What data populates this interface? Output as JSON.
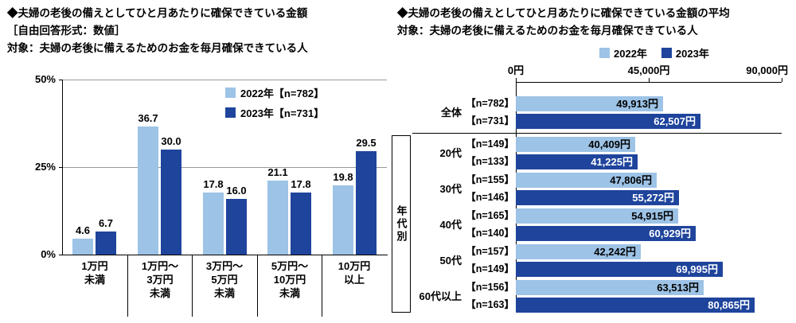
{
  "colors": {
    "y2022": "#9DC3E6",
    "y2023": "#1E449C",
    "grid": "#999999",
    "axis": "#000000"
  },
  "chart_data": [
    {
      "type": "bar",
      "title": "◆夫婦の老後の備えとしてひと月あたりに確保できている金額",
      "subtitle": "［自由回答形式：数値］",
      "target": "対象：夫婦の老後に備えるためのお金を毎月確保できている人",
      "ylim": [
        0,
        50
      ],
      "grid": true,
      "legend_position": "inside-top-right",
      "yticks": [
        {
          "label": "50%",
          "value": 50
        },
        {
          "label": "25%",
          "value": 25
        },
        {
          "label": "0%",
          "value": 0
        }
      ],
      "categories": [
        [
          "1万円",
          "未満"
        ],
        [
          "1万円～",
          "3万円",
          "未満"
        ],
        [
          "3万円～",
          "5万円",
          "未満"
        ],
        [
          "5万円～",
          "10万円",
          "未満"
        ],
        [
          "10万円",
          "以上"
        ]
      ],
      "series": [
        {
          "name": "2022年【n=782】",
          "key": "y2022",
          "values": [
            4.6,
            36.7,
            17.8,
            21.1,
            19.8
          ],
          "labels": [
            "4.6",
            "36.7",
            "17.8",
            "21.1",
            "19.8"
          ]
        },
        {
          "name": "2023年【n=731】",
          "key": "y2023",
          "values": [
            6.7,
            30.0,
            16.0,
            17.8,
            29.5
          ],
          "labels": [
            "6.7",
            "30.0",
            "16.0",
            "17.8",
            "29.5"
          ]
        }
      ]
    },
    {
      "type": "bar-horizontal",
      "title": "◆夫婦の老後の備えとしてひと月あたりに確保できている金額の平均",
      "target": "対象：夫婦の老後に備えるためのお金を毎月確保できている人",
      "xlim": [
        0,
        90000
      ],
      "legend_position": "top-right",
      "xticks": [
        {
          "label": "0円",
          "value": 0
        },
        {
          "label": "45,000円",
          "value": 45000
        },
        {
          "label": "90,000円",
          "value": 90000
        }
      ],
      "legend": [
        {
          "name": "2022年",
          "key": "y2022"
        },
        {
          "name": "2023年",
          "key": "y2023"
        }
      ],
      "group_label": "年代別",
      "rows": [
        {
          "category": "全体",
          "in_group": false,
          "bars": [
            {
              "series": "y2022",
              "n": "【n=782】",
              "value": 49913,
              "label": "49,913円"
            },
            {
              "series": "y2023",
              "n": "【n=731】",
              "value": 62507,
              "label": "62,507円"
            }
          ]
        },
        {
          "category": "20代",
          "in_group": true,
          "bars": [
            {
              "series": "y2022",
              "n": "【n=149】",
              "value": 40409,
              "label": "40,409円"
            },
            {
              "series": "y2023",
              "n": "【n=133】",
              "value": 41225,
              "label": "41,225円"
            }
          ]
        },
        {
          "category": "30代",
          "in_group": true,
          "bars": [
            {
              "series": "y2022",
              "n": "【n=155】",
              "value": 47806,
              "label": "47,806円"
            },
            {
              "series": "y2023",
              "n": "【n=146】",
              "value": 55272,
              "label": "55,272円"
            }
          ]
        },
        {
          "category": "40代",
          "in_group": true,
          "bars": [
            {
              "series": "y2022",
              "n": "【n=165】",
              "value": 54915,
              "label": "54,915円"
            },
            {
              "series": "y2023",
              "n": "【n=140】",
              "value": 60929,
              "label": "60,929円"
            }
          ]
        },
        {
          "category": "50代",
          "in_group": true,
          "bars": [
            {
              "series": "y2022",
              "n": "【n=157】",
              "value": 42242,
              "label": "42,242円"
            },
            {
              "series": "y2023",
              "n": "【n=149】",
              "value": 69995,
              "label": "69,995円"
            }
          ]
        },
        {
          "category": "60代以上",
          "in_group": true,
          "bars": [
            {
              "series": "y2022",
              "n": "【n=156】",
              "value": 63513,
              "label": "63,513円"
            },
            {
              "series": "y2023",
              "n": "【n=163】",
              "value": 80865,
              "label": "80,865円"
            }
          ]
        }
      ]
    }
  ]
}
